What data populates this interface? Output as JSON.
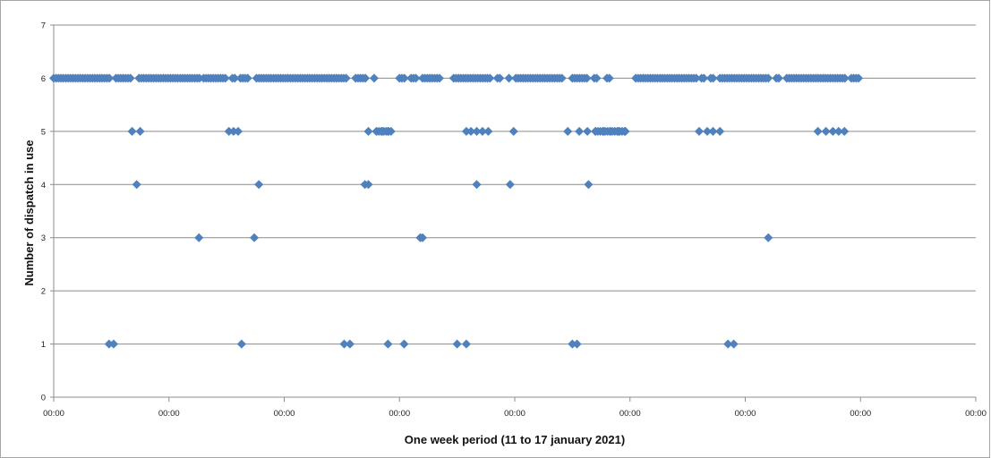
{
  "chart_data": {
    "type": "scatter",
    "title": "",
    "xlabel": "One week period (11 to 17 january 2021)",
    "ylabel": "Number of dispatch in use",
    "ylim": [
      0,
      7
    ],
    "yticks": [
      "0",
      "1",
      "2",
      "3",
      "4",
      "5",
      "6",
      "7"
    ],
    "xlim": [
      0,
      8
    ],
    "xticks": [
      "00:00",
      "00:00",
      "00:00",
      "00:00",
      "00:00",
      "00:00",
      "00:00",
      "00:00",
      "00:00"
    ],
    "grid": "horizontal",
    "legend": "none",
    "marker_color": "#4f81bd",
    "series": [
      {
        "values": [
          {
            "ranges": [
              [
                0.0,
                0.5
              ],
              [
                0.54,
                0.67
              ],
              [
                0.74,
                1.28
              ],
              [
                1.3,
                1.5
              ],
              [
                1.55,
                1.58
              ],
              [
                1.62,
                1.7
              ],
              [
                1.76,
                2.55
              ],
              [
                2.62,
                2.72
              ],
              [
                2.78,
                2.79
              ],
              [
                3.0,
                3.05
              ],
              [
                3.1,
                3.16
              ],
              [
                3.2,
                3.35
              ],
              [
                3.47,
                3.8
              ],
              [
                3.85,
                3.88
              ],
              [
                3.95,
                3.97
              ],
              [
                4.01,
                4.42
              ],
              [
                4.5,
                4.63
              ],
              [
                4.69,
                4.72
              ],
              [
                4.8,
                4.84
              ]
            ],
            "y": 6
          },
          {
            "ranges": [
              [
                5.05,
                5.58
              ],
              [
                5.62,
                5.65
              ],
              [
                5.7,
                5.73
              ],
              [
                5.78,
                6.2
              ],
              [
                6.27,
                6.3
              ],
              [
                6.36,
                6.88
              ],
              [
                6.92,
                7.0
              ]
            ],
            "y": 6
          },
          {
            "points": [
              0.68,
              0.75,
              1.52,
              1.56,
              1.6,
              2.73,
              2.8,
              2.85,
              2.9,
              3.58,
              3.62,
              3.67,
              3.72,
              3.77,
              3.99,
              4.46,
              4.56,
              4.63,
              4.7,
              4.77,
              4.83,
              4.9,
              4.96,
              5.6,
              5.67,
              5.72,
              5.78,
              6.63,
              6.7,
              6.76,
              6.81,
              6.86
            ],
            "y": 5
          },
          {
            "ranges": [
              [
                2.8,
                2.93
              ],
              [
                4.7,
                4.96
              ]
            ],
            "y": 5
          },
          {
            "points": [
              0.72,
              1.78,
              2.7,
              2.73,
              3.67,
              3.96,
              4.64
            ],
            "y": 4
          },
          {
            "points": [
              1.26,
              1.74,
              3.18,
              3.2,
              6.2
            ],
            "y": 3
          },
          {
            "points": [
              0.48,
              0.52,
              1.63,
              2.52,
              2.57,
              2.9,
              3.04,
              3.5,
              3.58,
              4.5,
              4.54,
              5.85,
              5.9
            ],
            "y": 1
          }
        ]
      }
    ]
  }
}
